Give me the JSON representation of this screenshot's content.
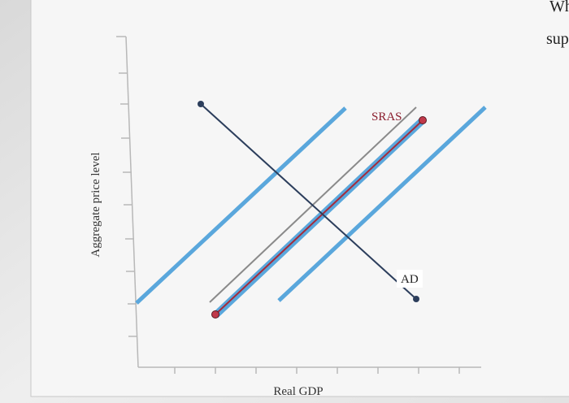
{
  "header": {
    "top_right_1": "Wh",
    "top_right_2": "sup"
  },
  "diagram": {
    "y_axis_label": "Aggregate price level",
    "x_axis_label": "Real GDP",
    "curves": [
      {
        "label": "SRAS"
      },
      {
        "label": "AD"
      }
    ]
  }
}
